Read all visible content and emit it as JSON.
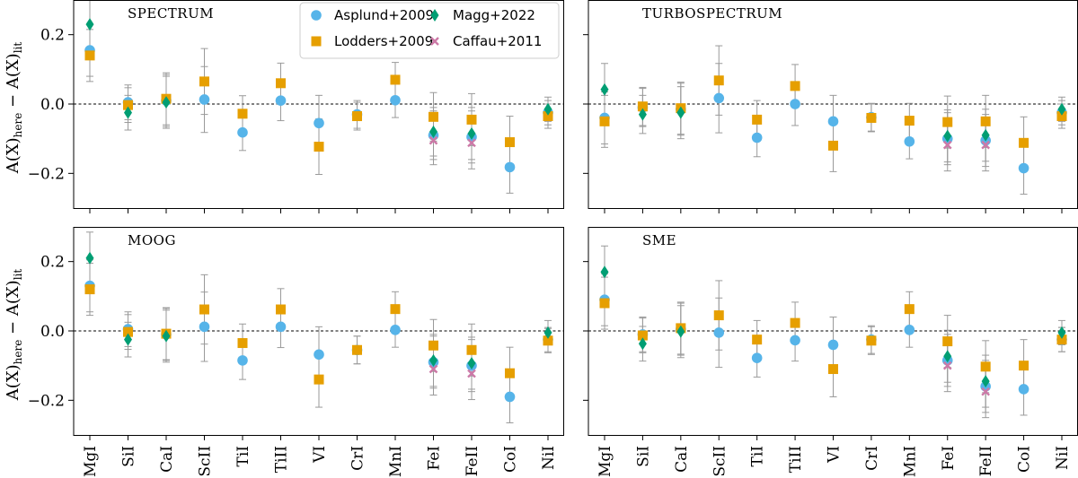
{
  "chart_data": {
    "type": "scatter",
    "ylabel": {
      "main": "A(X)",
      "sub1": "here",
      "mid": " − A(X)",
      "sub2": "lit"
    },
    "ylim": [
      -0.3,
      0.3
    ],
    "yticks": [
      -0.2,
      0.0,
      0.2
    ],
    "ytick_labels": [
      "−0.2",
      "0.0",
      "0.2"
    ],
    "reference_line": 0.0,
    "categories": [
      "MgI",
      "SiI",
      "CaI",
      "ScII",
      "TiI",
      "TiII",
      "VI",
      "CrI",
      "MnI",
      "FeI",
      "FeII",
      "CoI",
      "NiI"
    ],
    "series_meta": [
      {
        "key": "asplund",
        "name": "Asplund+2009",
        "color": "#56b4e9",
        "marker": "circle"
      },
      {
        "key": "lodders",
        "name": "Lodders+2009",
        "color": "#e69f00",
        "marker": "square"
      },
      {
        "key": "magg",
        "name": "Magg+2022",
        "color": "#009e73",
        "marker": "diamond"
      },
      {
        "key": "caffau",
        "name": "Caffau+2011",
        "color": "#cc79a7",
        "marker": "x"
      }
    ],
    "panels": [
      {
        "title": "SPECTRUM",
        "series": {
          "asplund": [
            0.155,
            0.005,
            0.01,
            0.013,
            -0.082,
            0.01,
            -0.055,
            -0.03,
            0.011,
            -0.09,
            -0.095,
            -0.182,
            -0.025
          ],
          "lodders": [
            0.14,
            -0.003,
            0.015,
            0.065,
            -0.028,
            0.06,
            -0.123,
            -0.035,
            0.07,
            -0.037,
            -0.045,
            -0.11,
            -0.035
          ],
          "magg": [
            0.23,
            -0.025,
            0.005,
            null,
            null,
            null,
            null,
            null,
            null,
            -0.08,
            -0.085,
            null,
            -0.015
          ],
          "caffau": [
            null,
            null,
            null,
            null,
            null,
            null,
            null,
            null,
            null,
            -0.105,
            -0.112,
            null,
            null
          ]
        },
        "errors": [
          0.075,
          0.05,
          0.075,
          0.095,
          0.052,
          0.058,
          0.08,
          0.04,
          0.05,
          0.07,
          0.075,
          0.075,
          0.035
        ]
      },
      {
        "title": "TURBOSPECTRUM",
        "series": {
          "asplund": [
            -0.04,
            -0.01,
            -0.015,
            0.017,
            -0.097,
            0.0,
            -0.05,
            -0.038,
            -0.108,
            -0.1,
            -0.105,
            -0.185,
            -0.025
          ],
          "lodders": [
            -0.05,
            -0.007,
            -0.012,
            0.068,
            -0.045,
            0.052,
            -0.12,
            -0.04,
            -0.048,
            -0.052,
            -0.05,
            -0.112,
            -0.035
          ],
          "magg": [
            0.042,
            -0.03,
            -0.025,
            null,
            null,
            null,
            null,
            null,
            null,
            -0.092,
            -0.09,
            null,
            -0.015
          ],
          "caffau": [
            null,
            null,
            null,
            null,
            null,
            null,
            null,
            null,
            null,
            -0.118,
            -0.118,
            null,
            null
          ]
        },
        "errors": [
          0.075,
          0.055,
          0.075,
          0.1,
          0.055,
          0.062,
          0.075,
          0.04,
          0.05,
          0.075,
          0.075,
          0.075,
          0.035
        ]
      },
      {
        "title": "MOOG",
        "series": {
          "asplund": [
            0.13,
            0.005,
            -0.01,
            0.012,
            -0.085,
            0.012,
            -0.068,
            -0.055,
            0.003,
            -0.09,
            -0.1,
            -0.19,
            -0.025
          ],
          "lodders": [
            0.12,
            -0.003,
            -0.008,
            0.062,
            -0.035,
            0.062,
            -0.14,
            -0.055,
            0.063,
            -0.042,
            -0.055,
            -0.122,
            -0.028
          ],
          "magg": [
            0.21,
            -0.025,
            -0.015,
            null,
            null,
            null,
            null,
            null,
            null,
            -0.085,
            -0.093,
            null,
            -0.005
          ],
          "caffau": [
            null,
            null,
            null,
            null,
            null,
            null,
            null,
            null,
            null,
            -0.11,
            -0.123,
            null,
            null
          ]
        },
        "errors": [
          0.075,
          0.05,
          0.075,
          0.1,
          0.055,
          0.06,
          0.08,
          0.04,
          0.05,
          0.075,
          0.075,
          0.075,
          0.035
        ]
      },
      {
        "title": "SME",
        "series": {
          "asplund": [
            0.09,
            -0.01,
            0.005,
            -0.005,
            -0.078,
            -0.027,
            -0.04,
            -0.025,
            0.003,
            -0.085,
            -0.16,
            -0.168,
            -0.025
          ],
          "lodders": [
            0.08,
            -0.013,
            0.008,
            0.045,
            -0.025,
            0.023,
            -0.11,
            -0.028,
            0.063,
            -0.03,
            -0.103,
            -0.1,
            -0.025
          ],
          "magg": [
            0.17,
            -0.037,
            -0.002,
            null,
            null,
            null,
            null,
            null,
            null,
            -0.073,
            -0.145,
            null,
            -0.005
          ],
          "caffau": [
            null,
            null,
            null,
            null,
            null,
            null,
            null,
            null,
            null,
            -0.1,
            -0.175,
            null,
            null
          ]
        },
        "errors": [
          0.075,
          0.05,
          0.075,
          0.1,
          0.055,
          0.06,
          0.08,
          0.04,
          0.05,
          0.075,
          0.075,
          0.075,
          0.035
        ]
      }
    ]
  }
}
